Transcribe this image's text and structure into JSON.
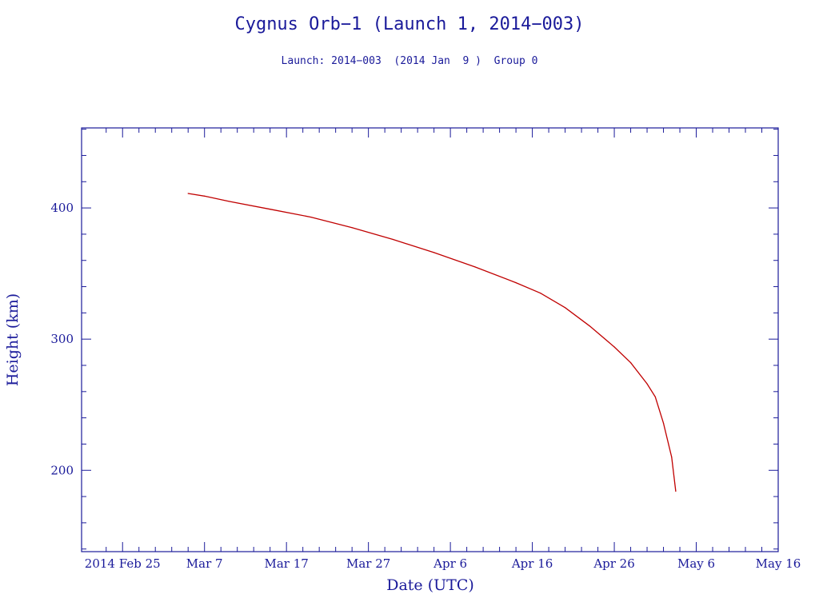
{
  "chart_data": {
    "type": "line",
    "title": "Cygnus Orb−1 (Launch 1, 2014−003)",
    "subtitle": "Launch: 2014−003  (2014 Jan  9 )  Group 0",
    "xlabel": "Date (UTC)",
    "ylabel": "Height (km)",
    "x_type": "date",
    "xlim": [
      "2014-02-20",
      "2014-05-16"
    ],
    "ylim": [
      138,
      461
    ],
    "x_tick_labels": [
      {
        "date": "2014-02-25",
        "label": "2014 Feb 25"
      },
      {
        "date": "2014-03-07",
        "label": "Mar  7"
      },
      {
        "date": "2014-03-17",
        "label": "Mar 17"
      },
      {
        "date": "2014-03-27",
        "label": "Mar 27"
      },
      {
        "date": "2014-04-06",
        "label": "Apr  6"
      },
      {
        "date": "2014-04-16",
        "label": "Apr 16"
      },
      {
        "date": "2014-04-26",
        "label": "Apr 26"
      },
      {
        "date": "2014-05-06",
        "label": "May  6"
      },
      {
        "date": "2014-05-16",
        "label": "May 16"
      }
    ],
    "y_ticks": [
      200,
      300,
      400
    ],
    "grid": false,
    "series": [
      {
        "color": "#c00000",
        "points": [
          {
            "x": "2014-03-05",
            "y": 411
          },
          {
            "x": "2014-03-07",
            "y": 409
          },
          {
            "x": "2014-03-10",
            "y": 405
          },
          {
            "x": "2014-03-15",
            "y": 399
          },
          {
            "x": "2014-03-20",
            "y": 393
          },
          {
            "x": "2014-03-25",
            "y": 385
          },
          {
            "x": "2014-03-30",
            "y": 376
          },
          {
            "x": "2014-04-04",
            "y": 366
          },
          {
            "x": "2014-04-09",
            "y": 355
          },
          {
            "x": "2014-04-14",
            "y": 343
          },
          {
            "x": "2014-04-17",
            "y": 335
          },
          {
            "x": "2014-04-20",
            "y": 324
          },
          {
            "x": "2014-04-23",
            "y": 310
          },
          {
            "x": "2014-04-26",
            "y": 294
          },
          {
            "x": "2014-04-28",
            "y": 282
          },
          {
            "x": "2014-04-30",
            "y": 266
          },
          {
            "x": "2014-05-01",
            "y": 256
          },
          {
            "x": "2014-05-02",
            "y": 236
          },
          {
            "x": "2014-05-03",
            "y": 210
          },
          {
            "x": "2014-05-03T12:00",
            "y": 184
          }
        ]
      }
    ]
  }
}
